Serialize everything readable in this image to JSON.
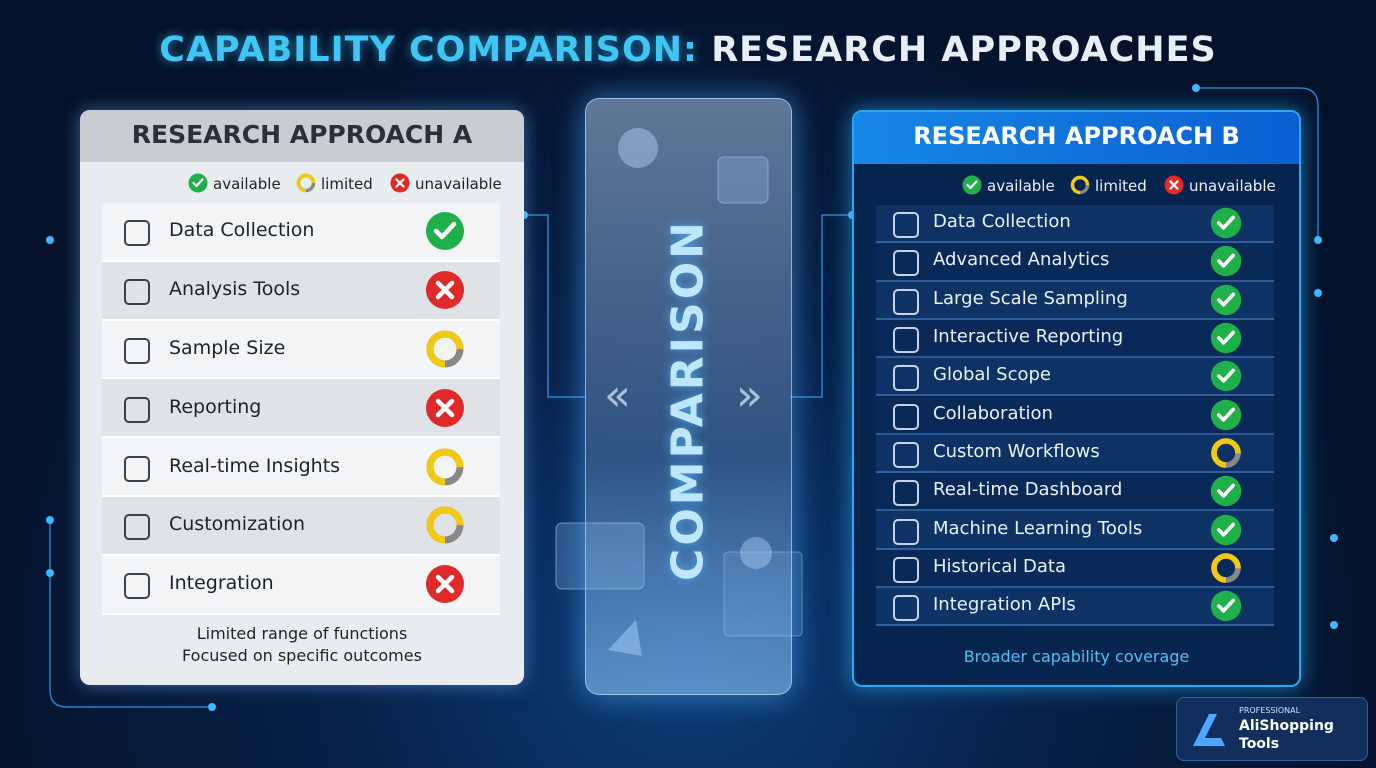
{
  "title": {
    "part1": "CAPABILITY COMPARISON:",
    "part2": "RESEARCH APPROACHES"
  },
  "center_label": "COMPARISON",
  "panels": [
    {
      "title": "RESEARCH APPROACH A",
      "legend": [
        "available",
        "limited",
        "unavailable"
      ],
      "rows": [
        {
          "label": "Data Collection",
          "status": "available"
        },
        {
          "label": "Analysis Tools",
          "status": "unavailable"
        },
        {
          "label": "Sample Size",
          "status": "limited"
        },
        {
          "label": "Reporting",
          "status": "unavailable"
        },
        {
          "label": "Real-time Insights",
          "status": "limited"
        },
        {
          "label": "Customization",
          "status": "limited"
        },
        {
          "label": "Integration",
          "status": "unavailable"
        }
      ],
      "footer": [
        "Limited range of functions",
        "Focused on specific outcomes"
      ]
    },
    {
      "title": "RESEARCH APPROACH B",
      "legend": [
        "available",
        "limited",
        "unavailable"
      ],
      "rows": [
        {
          "label": "Data Collection",
          "status": "available"
        },
        {
          "label": "Advanced Analytics",
          "status": "available"
        },
        {
          "label": "Large Scale Sampling",
          "status": "available"
        },
        {
          "label": "Interactive Reporting",
          "status": "available"
        },
        {
          "label": "Global Scope",
          "status": "available"
        },
        {
          "label": "Collaboration",
          "status": "available"
        },
        {
          "label": "Custom Workflows",
          "status": "limited"
        },
        {
          "label": "Real-time Dashboard",
          "status": "available"
        },
        {
          "label": "Machine Learning Tools",
          "status": "available"
        },
        {
          "label": "Historical Data",
          "status": "limited"
        },
        {
          "label": "Integration APIs",
          "status": "available"
        }
      ],
      "footer": [
        "Broader capability coverage"
      ]
    }
  ],
  "logo": {
    "tagline": "PROFESSIONAL",
    "name": [
      "AliShopping",
      "Tools"
    ]
  }
}
